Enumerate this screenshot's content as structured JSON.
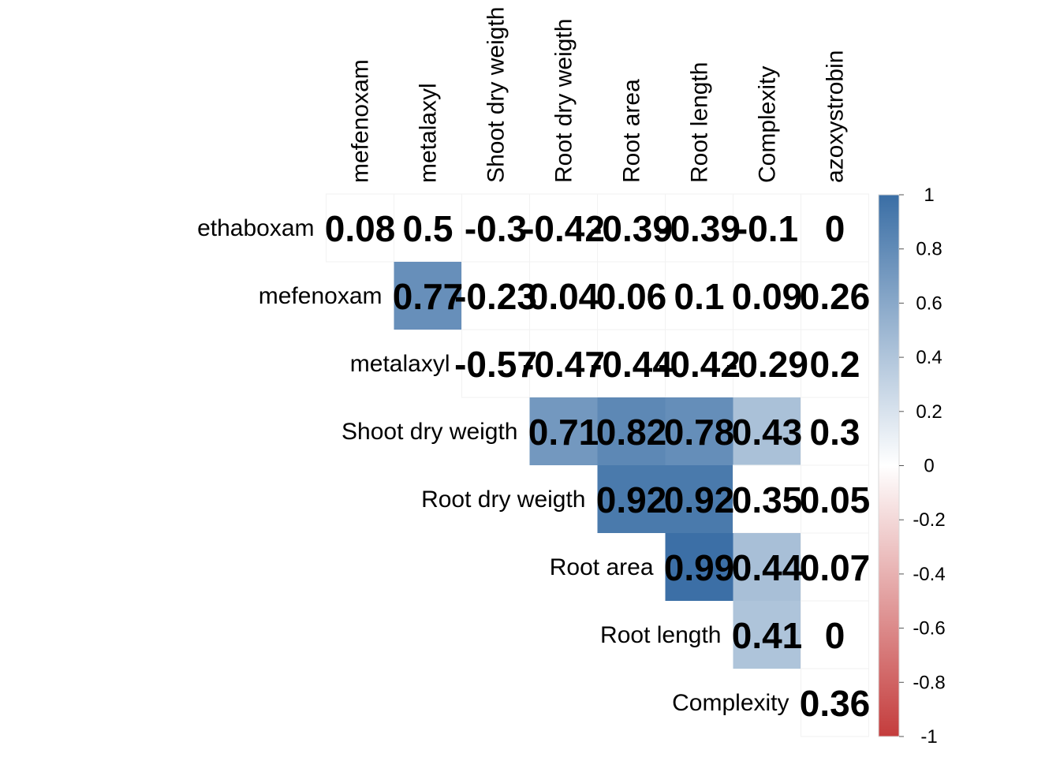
{
  "chart_data": {
    "type": "heatmap",
    "rows": [
      "ethaboxam",
      "mefenoxam",
      "metalaxyl",
      "Shoot dry weigth",
      "Root dry weigth",
      "Root area",
      "Root length",
      "Complexity"
    ],
    "columns": [
      "mefenoxam",
      "metalaxyl",
      "Shoot dry weigth",
      "Root dry weigth",
      "Root area",
      "Root length",
      "Complexity",
      "azoxystrobin"
    ],
    "cells": [
      {
        "row": "ethaboxam",
        "col": "mefenoxam",
        "value": 0.08,
        "label": "0.08"
      },
      {
        "row": "ethaboxam",
        "col": "metalaxyl",
        "value": 0.5,
        "label": "0.5"
      },
      {
        "row": "ethaboxam",
        "col": "Shoot dry weigth",
        "value": -0.3,
        "label": "-0.3"
      },
      {
        "row": "ethaboxam",
        "col": "Root dry weigth",
        "value": -0.42,
        "label": "-0.42"
      },
      {
        "row": "ethaboxam",
        "col": "Root area",
        "value": -0.39,
        "label": "-0.39"
      },
      {
        "row": "ethaboxam",
        "col": "Root length",
        "value": -0.39,
        "label": "-0.39"
      },
      {
        "row": "ethaboxam",
        "col": "Complexity",
        "value": -0.1,
        "label": "-0.1"
      },
      {
        "row": "ethaboxam",
        "col": "azoxystrobin",
        "value": 0,
        "label": "0"
      },
      {
        "row": "mefenoxam",
        "col": "metalaxyl",
        "value": 0.77,
        "label": "0.77"
      },
      {
        "row": "mefenoxam",
        "col": "Shoot dry weigth",
        "value": -0.23,
        "label": "-0.23"
      },
      {
        "row": "mefenoxam",
        "col": "Root dry weigth",
        "value": 0.04,
        "label": "0.04"
      },
      {
        "row": "mefenoxam",
        "col": "Root area",
        "value": 0.06,
        "label": "0.06"
      },
      {
        "row": "mefenoxam",
        "col": "Root length",
        "value": 0.1,
        "label": "0.1"
      },
      {
        "row": "mefenoxam",
        "col": "Complexity",
        "value": 0.09,
        "label": "0.09"
      },
      {
        "row": "mefenoxam",
        "col": "azoxystrobin",
        "value": 0.26,
        "label": "0.26"
      },
      {
        "row": "metalaxyl",
        "col": "Shoot dry weigth",
        "value": -0.57,
        "label": "-0.57"
      },
      {
        "row": "metalaxyl",
        "col": "Root dry weigth",
        "value": -0.47,
        "label": "-0.47"
      },
      {
        "row": "metalaxyl",
        "col": "Root area",
        "value": -0.44,
        "label": "-0.44"
      },
      {
        "row": "metalaxyl",
        "col": "Root length",
        "value": -0.42,
        "label": "-0.42"
      },
      {
        "row": "metalaxyl",
        "col": "Complexity",
        "value": -0.29,
        "label": "-0.29"
      },
      {
        "row": "metalaxyl",
        "col": "azoxystrobin",
        "value": 0.2,
        "label": "0.2"
      },
      {
        "row": "Shoot dry weigth",
        "col": "Root dry weigth",
        "value": 0.71,
        "label": "0.71"
      },
      {
        "row": "Shoot dry weigth",
        "col": "Root area",
        "value": 0.82,
        "label": "0.82"
      },
      {
        "row": "Shoot dry weigth",
        "col": "Root length",
        "value": 0.78,
        "label": "0.78"
      },
      {
        "row": "Shoot dry weigth",
        "col": "Complexity",
        "value": 0.43,
        "label": "0.43"
      },
      {
        "row": "Shoot dry weigth",
        "col": "azoxystrobin",
        "value": 0.3,
        "label": "0.3"
      },
      {
        "row": "Root dry weigth",
        "col": "Root area",
        "value": 0.92,
        "label": "0.92"
      },
      {
        "row": "Root dry weigth",
        "col": "Root length",
        "value": 0.92,
        "label": "0.92"
      },
      {
        "row": "Root dry weigth",
        "col": "Complexity",
        "value": 0.35,
        "label": "0.35"
      },
      {
        "row": "Root dry weigth",
        "col": "azoxystrobin",
        "value": 0.05,
        "label": "0.05"
      },
      {
        "row": "Root area",
        "col": "Root length",
        "value": 0.99,
        "label": "0.99"
      },
      {
        "row": "Root area",
        "col": "Complexity",
        "value": 0.44,
        "label": "0.44"
      },
      {
        "row": "Root area",
        "col": "azoxystrobin",
        "value": 0.07,
        "label": "0.07"
      },
      {
        "row": "Root length",
        "col": "Complexity",
        "value": 0.41,
        "label": "0.41"
      },
      {
        "row": "Root length",
        "col": "azoxystrobin",
        "value": 0,
        "label": "0"
      },
      {
        "row": "Complexity",
        "col": "azoxystrobin",
        "value": 0.36,
        "label": "0.36"
      }
    ],
    "color_scale": {
      "min": -1,
      "max": 1,
      "negative_color": "#c43c3c",
      "zero_color": "#ffffff",
      "positive_color": "#3a6ea5",
      "ticks": [
        "1",
        "0.8",
        "0.6",
        "0.4",
        "0.2",
        "0",
        "-0.2",
        "-0.4",
        "-0.6",
        "-0.8",
        "-1"
      ]
    },
    "legend_position": "right",
    "cell_fill": "pvalue-masked"
  }
}
